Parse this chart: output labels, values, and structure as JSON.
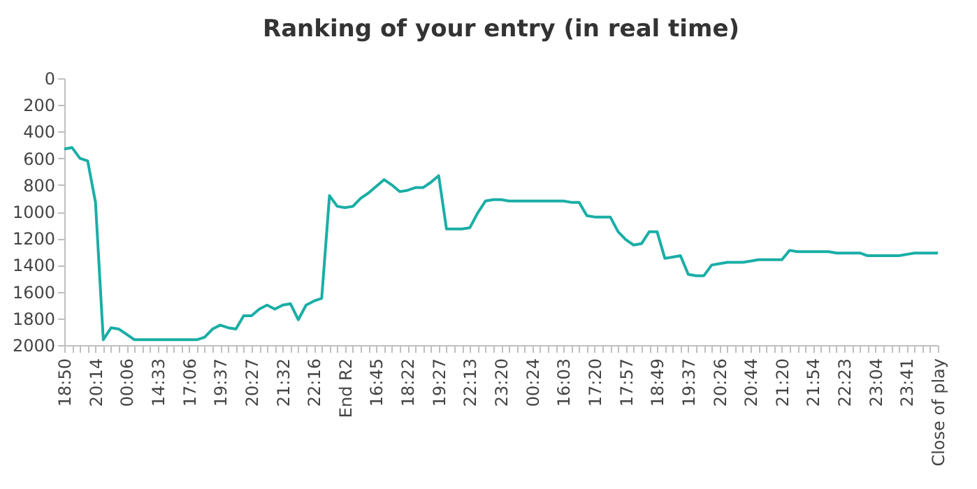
{
  "chart_data": {
    "type": "line",
    "title": "Ranking of your entry (in real time)",
    "categories": [
      "18:50",
      null,
      null,
      null,
      "20:14",
      null,
      null,
      null,
      "00:06",
      null,
      null,
      null,
      "14:33",
      null,
      null,
      null,
      "17:06",
      null,
      null,
      null,
      "19:37",
      null,
      null,
      null,
      "20:27",
      null,
      null,
      null,
      "21:32",
      null,
      null,
      null,
      "22:16",
      null,
      null,
      null,
      "End R2",
      null,
      null,
      null,
      "16:45",
      null,
      null,
      null,
      "18:22",
      null,
      null,
      null,
      "19:27",
      null,
      null,
      null,
      "22:13",
      null,
      null,
      null,
      "23:20",
      null,
      null,
      null,
      "00:24",
      null,
      null,
      null,
      "16:03",
      null,
      null,
      null,
      "17:20",
      null,
      null,
      null,
      "17:57",
      null,
      null,
      null,
      "18:49",
      null,
      null,
      null,
      "19:37",
      null,
      null,
      null,
      "20:26",
      null,
      null,
      null,
      "20:44",
      null,
      null,
      null,
      "21:20",
      null,
      null,
      null,
      "21:54",
      null,
      null,
      null,
      "22:23",
      null,
      null,
      null,
      "23:04",
      null,
      null,
      null,
      "23:41",
      null,
      null,
      null,
      "Close of play"
    ],
    "series": [
      {
        "color": "#1aaea6",
        "values": [
          530,
          520,
          600,
          620,
          930,
          1960,
          1870,
          1880,
          1920,
          1960,
          1960,
          1960,
          1960,
          1960,
          1960,
          1960,
          1960,
          1960,
          1940,
          1880,
          1850,
          1870,
          1880,
          1780,
          1780,
          1730,
          1700,
          1730,
          1700,
          1690,
          1810,
          1700,
          1670,
          1650,
          880,
          960,
          970,
          960,
          900,
          860,
          810,
          760,
          800,
          850,
          840,
          820,
          820,
          780,
          730,
          1130,
          1130,
          1130,
          1120,
          1010,
          920,
          910,
          910,
          920,
          920,
          920,
          920,
          920,
          920,
          920,
          920,
          930,
          930,
          1030,
          1040,
          1040,
          1040,
          1150,
          1210,
          1250,
          1240,
          1150,
          1150,
          1350,
          1340,
          1330,
          1470,
          1480,
          1480,
          1400,
          1390,
          1380,
          1380,
          1380,
          1370,
          1360,
          1360,
          1360,
          1360,
          1290,
          1300,
          1300,
          1300,
          1300,
          1300,
          1310,
          1310,
          1310,
          1310,
          1330,
          1330,
          1330,
          1330,
          1330,
          1320,
          1310,
          1310,
          1310,
          1310
        ]
      }
    ],
    "ylim": [
      2000,
      0
    ],
    "yticks": [
      0,
      200,
      400,
      600,
      800,
      1000,
      1200,
      1400,
      1600,
      1800,
      2000
    ],
    "grid": false,
    "legend": false
  }
}
